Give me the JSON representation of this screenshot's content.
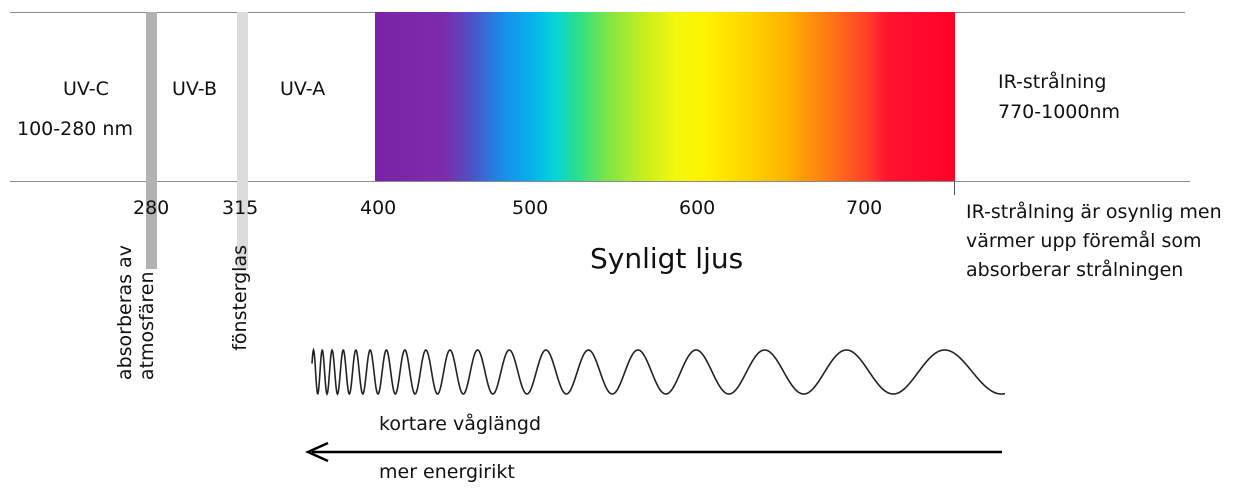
{
  "bands": {
    "uvc": {
      "name": "UV-C",
      "range": "100-280 nm"
    },
    "uvb": {
      "name": "UV-B"
    },
    "uva": {
      "name": "UV-A"
    },
    "ir": {
      "name": "IR-strålning",
      "range": "770-1000nm"
    }
  },
  "ticks": [
    "280",
    "315",
    "400",
    "500",
    "600",
    "700"
  ],
  "visible_light_label": "Synligt ljus",
  "ir_note": [
    "IR-strålning är osynlig men",
    "värmer upp föremål som",
    "absorberar strålningen"
  ],
  "bar_labels": {
    "atmosphere": [
      "absorberas av",
      "atmosfären"
    ],
    "window_glass": "fönsterglas"
  },
  "wave_caption": "kortare våglängd",
  "arrow_caption": "mer energirikt",
  "colors": {
    "axis_line": "#8a8a8a",
    "bar_280": "#b2b2b2",
    "bar_315": "#dcdcdc",
    "wave": "#222222",
    "arrow": "#000000"
  }
}
